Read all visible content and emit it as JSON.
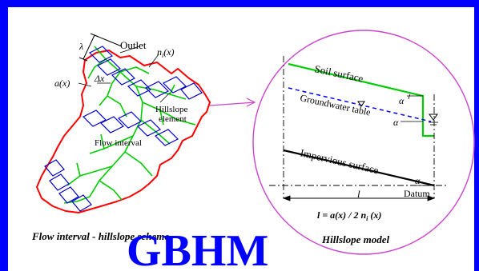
{
  "labels": {
    "outlet": "Outlet",
    "nx": "n",
    "nx_sub": "i",
    "nx_tail": "(x)",
    "ax": "a(x)",
    "dx": "Δx",
    "lam": "λ",
    "hillslope1": "Hillslope",
    "hillslope2": "element",
    "flow_interval": "Flow interval",
    "soil_surface": "Soil surface",
    "groundwater_table": "Groundwater table",
    "impervious_surface": "Impervious surface",
    "alpha1": "α",
    "alpha2": "α",
    "alpha3": "α",
    "datum": "Datum",
    "l": "l",
    "formula": "l = a(x) / 2 n",
    "formula_sub": "i",
    "formula_tail": " (x)"
  },
  "captions": {
    "left": "Flow interval - hillslope scheme",
    "right": "Hillslope model",
    "title": "GBHM"
  },
  "colors": {
    "frame": "#0000ff",
    "boundary": "#ff0000",
    "river": "#00cc00",
    "ellipse": "#cc44cc",
    "groundwater": "#0000ff",
    "title": "#0000ff"
  }
}
